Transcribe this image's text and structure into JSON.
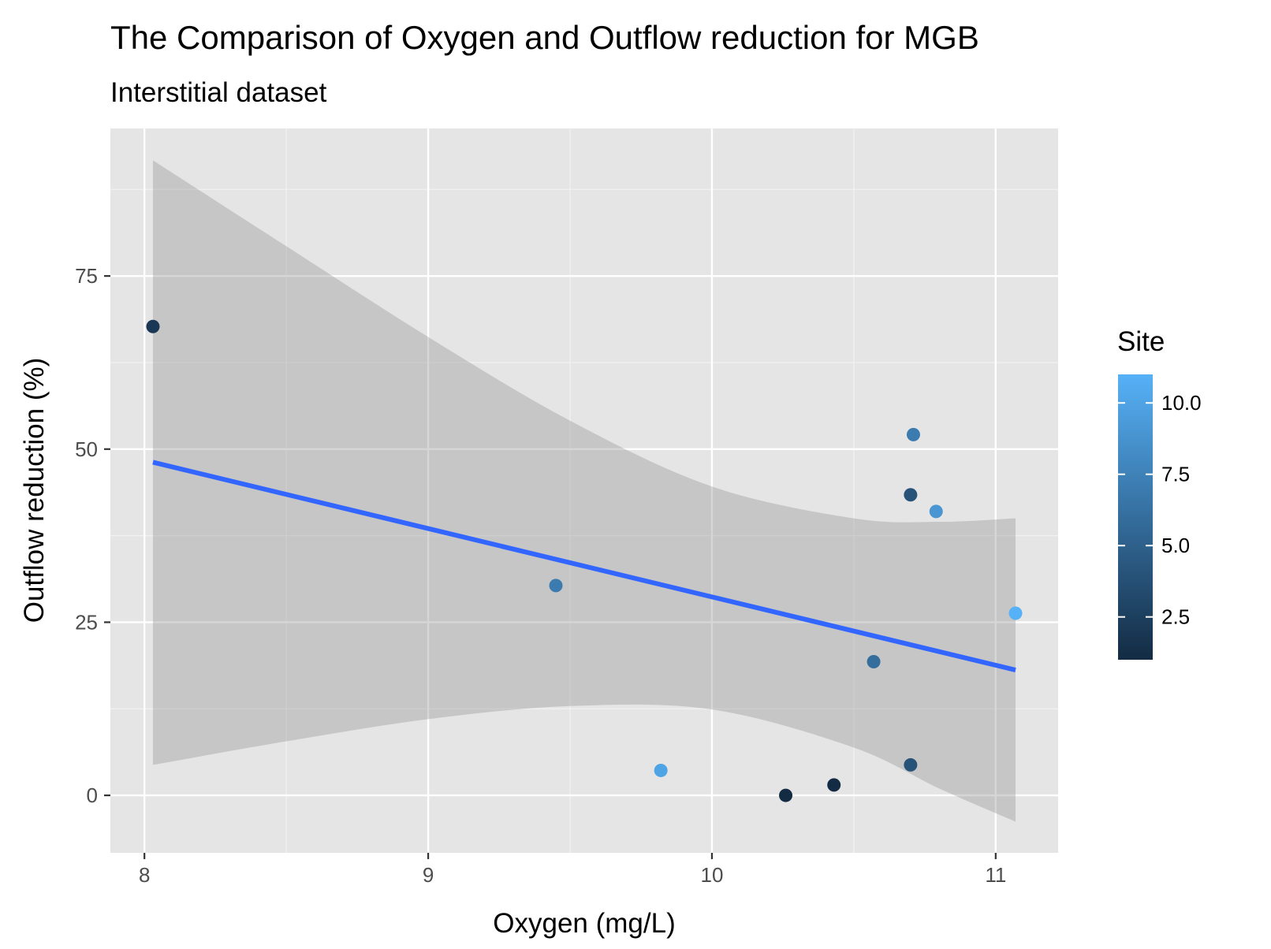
{
  "chart_data": {
    "type": "scatter",
    "title": "The Comparison of Oxygen and Outflow reduction for MGB",
    "subtitle": "Interstitial dataset",
    "xlabel": "Oxygen (mg/L)",
    "ylabel": "Outflow reduction (%)",
    "xlim": [
      7.88,
      11.22
    ],
    "ylim": [
      -8.3,
      96.3
    ],
    "x_ticks": [
      8,
      9,
      10,
      11
    ],
    "x_tick_labels": [
      "8",
      "9",
      "10",
      "11"
    ],
    "y_ticks": [
      0,
      25,
      50,
      75
    ],
    "y_tick_labels": [
      "0",
      "25",
      "50",
      "75"
    ],
    "grid": true,
    "legend": {
      "title": "Site",
      "position": "right",
      "type": "colorbar",
      "range": [
        1,
        11
      ],
      "breaks": [
        2.5,
        5.0,
        7.5,
        10.0
      ],
      "break_labels": [
        "2.5",
        "5.0",
        "7.5",
        "10.0"
      ],
      "low_color": "#132B43",
      "high_color": "#56B1F7"
    },
    "points": [
      {
        "x": 8.03,
        "y": 67.7,
        "site": 2
      },
      {
        "x": 9.45,
        "y": 30.3,
        "site": 7
      },
      {
        "x": 9.82,
        "y": 3.6,
        "site": 10
      },
      {
        "x": 10.26,
        "y": 0.0,
        "site": 1
      },
      {
        "x": 10.43,
        "y": 1.5,
        "site": 1
      },
      {
        "x": 10.57,
        "y": 19.3,
        "site": 6
      },
      {
        "x": 10.71,
        "y": 52.1,
        "site": 7
      },
      {
        "x": 10.7,
        "y": 43.4,
        "site": 4
      },
      {
        "x": 10.79,
        "y": 41.0,
        "site": 9
      },
      {
        "x": 10.7,
        "y": 4.4,
        "site": 4
      },
      {
        "x": 11.07,
        "y": 26.3,
        "site": 11
      }
    ],
    "trend_line": {
      "method": "linear",
      "color": "#3366FF",
      "x": [
        8.03,
        11.07
      ],
      "y": [
        48.1,
        18.1
      ]
    },
    "confidence_band": {
      "color": "#999999",
      "x": [
        8.03,
        8.5,
        9.0,
        9.5,
        10.0,
        10.5,
        10.8,
        11.07
      ],
      "upper": [
        91.7,
        79.3,
        66.2,
        54.1,
        44.6,
        40.0,
        39.5,
        40.0
      ],
      "lower": [
        4.4,
        7.8,
        11.0,
        12.9,
        12.4,
        6.9,
        1.0,
        -3.8
      ]
    }
  }
}
